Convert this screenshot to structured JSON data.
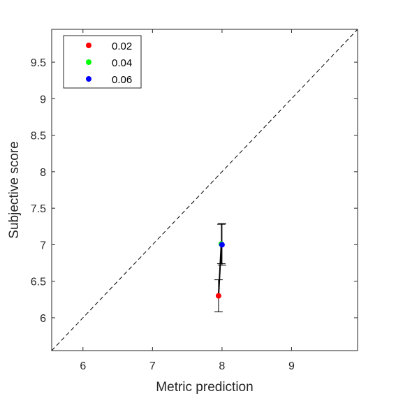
{
  "chart_data": {
    "type": "scatter",
    "xlabel": "Metric prediction",
    "ylabel": "Subjective score",
    "xlim": [
      5.55,
      9.95
    ],
    "ylim": [
      5.55,
      9.95
    ],
    "xticks": [
      6,
      7,
      8,
      9
    ],
    "yticks": [
      6,
      6.5,
      7,
      7.5,
      8,
      8.5,
      9,
      9.5
    ],
    "xtick_labels": [
      "6",
      "7",
      "8",
      "9"
    ],
    "ytick_labels": [
      "6",
      "6.5",
      "7",
      "7.5",
      "8",
      "8.5",
      "9",
      "9.5"
    ],
    "grid": false,
    "legend_position": "top-left",
    "reference_line": {
      "style": "dashed",
      "from": [
        5.55,
        5.55
      ],
      "to": [
        9.95,
        9.95
      ]
    },
    "series": [
      {
        "name": "0.02",
        "color": "#ff0000",
        "x": [
          7.95
        ],
        "y": [
          6.3
        ],
        "err_low": [
          6.08
        ],
        "err_high": [
          6.52
        ]
      },
      {
        "name": "0.04",
        "color": "#00ff00",
        "x": [
          7.99
        ],
        "y": [
          7.01
        ],
        "err_low": [
          6.74
        ],
        "err_high": [
          7.28
        ]
      },
      {
        "name": "0.06",
        "color": "#0000ff",
        "x": [
          8.0
        ],
        "y": [
          7.0
        ],
        "err_low": [
          6.72
        ],
        "err_high": [
          7.29
        ]
      }
    ]
  }
}
